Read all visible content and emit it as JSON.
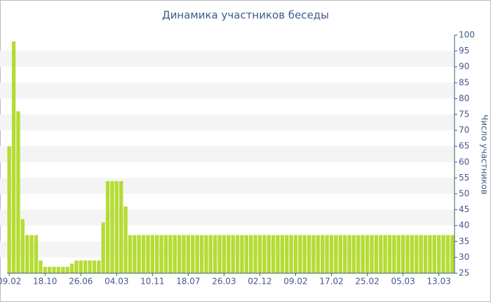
{
  "chart_data": {
    "type": "bar",
    "title": "Динамика участников беседы",
    "y_label": "Число участников",
    "categories": [
      "09.02",
      null,
      null,
      null,
      null,
      null,
      null,
      null,
      "18.10",
      null,
      null,
      null,
      null,
      null,
      null,
      null,
      "26.06",
      null,
      null,
      null,
      null,
      null,
      null,
      null,
      "04.03",
      null,
      null,
      null,
      null,
      null,
      null,
      null,
      "10.11",
      null,
      null,
      null,
      null,
      null,
      null,
      null,
      "18.07",
      null,
      null,
      null,
      null,
      null,
      null,
      null,
      "26.03",
      null,
      null,
      null,
      null,
      null,
      null,
      null,
      "02.12",
      null,
      null,
      null,
      null,
      null,
      null,
      null,
      "09.02",
      null,
      null,
      null,
      null,
      null,
      null,
      null,
      "17.02",
      null,
      null,
      null,
      null,
      null,
      null,
      null,
      "25.02",
      null,
      null,
      null,
      null,
      null,
      null,
      null,
      "05.03",
      null,
      null,
      null,
      null,
      null,
      null,
      null,
      "13.03",
      null,
      null,
      null
    ],
    "values": [
      65,
      98,
      76,
      42,
      37,
      37,
      37,
      29,
      27,
      27,
      27,
      27,
      27,
      27,
      28,
      29,
      29,
      29,
      29,
      29,
      29,
      41,
      54,
      54,
      54,
      54,
      46,
      37,
      37,
      37,
      37,
      37,
      37,
      37,
      37,
      37,
      37,
      37,
      37,
      37,
      37,
      37,
      37,
      37,
      37,
      37,
      37,
      37,
      37,
      37,
      37,
      37,
      37,
      37,
      37,
      37,
      37,
      37,
      37,
      37,
      37,
      37,
      37,
      37,
      37,
      37,
      37,
      37,
      37,
      37,
      37,
      37,
      37,
      37,
      37,
      37,
      37,
      37,
      37,
      37,
      37,
      37,
      37,
      37,
      37,
      37,
      37,
      37,
      37,
      37,
      37,
      37,
      37,
      37,
      37,
      37,
      37,
      37,
      37,
      37
    ],
    "color": "#b5dc34",
    "ylim": [
      25,
      100
    ],
    "yticks": [
      25,
      30,
      35,
      40,
      45,
      50,
      55,
      60,
      65,
      70,
      75,
      80,
      85,
      90,
      95,
      100
    ],
    "grid": "bands"
  }
}
